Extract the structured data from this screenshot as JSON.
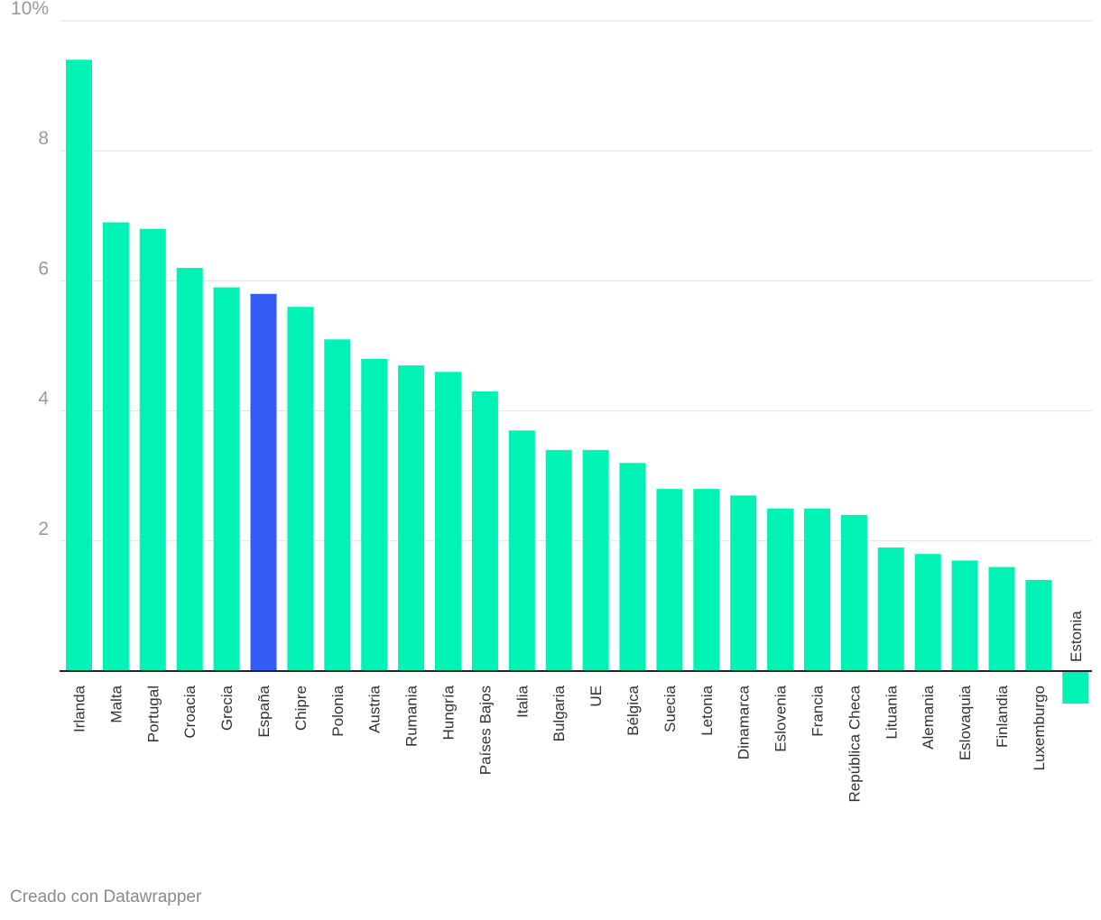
{
  "footer": {
    "credit": "Creado con Datawrapper"
  },
  "colors": {
    "default_bar": "#00f2b4",
    "highlight_bar": "#335cf5",
    "grid": "#e2e2e2",
    "axis": "#222222",
    "tick_text": "#9a9a9a",
    "label_text": "#333333"
  },
  "chart_data": {
    "type": "bar",
    "orientation": "vertical",
    "title": "",
    "xlabel": "",
    "ylabel": "",
    "ylim": [
      0,
      10
    ],
    "y_ticks": [
      {
        "value": 2,
        "label": "2"
      },
      {
        "value": 4,
        "label": "4"
      },
      {
        "value": 6,
        "label": "6"
      },
      {
        "value": 8,
        "label": "8"
      },
      {
        "value": 10,
        "label": "10%"
      }
    ],
    "grid": true,
    "highlight": "España",
    "categories": [
      "Irlanda",
      "Malta",
      "Portugal",
      "Croacia",
      "Grecia",
      "España",
      "Chipre",
      "Polonia",
      "Austria",
      "Rumania",
      "Hungría",
      "Países Bajos",
      "Italia",
      "Bulgaria",
      "UE",
      "Bélgica",
      "Suecia",
      "Letonia",
      "Dinamarca",
      "Eslovenia",
      "Francia",
      "República Checa",
      "Lituania",
      "Alemania",
      "Eslovaquia",
      "Finlandia",
      "Luxemburgo",
      "Estonia"
    ],
    "values": [
      9.4,
      6.9,
      6.8,
      6.2,
      5.9,
      5.8,
      5.6,
      5.1,
      4.8,
      4.7,
      4.6,
      4.3,
      3.7,
      3.4,
      3.4,
      3.2,
      2.8,
      2.8,
      2.7,
      2.5,
      2.5,
      2.4,
      1.9,
      1.8,
      1.7,
      1.6,
      1.4,
      -0.5
    ]
  }
}
